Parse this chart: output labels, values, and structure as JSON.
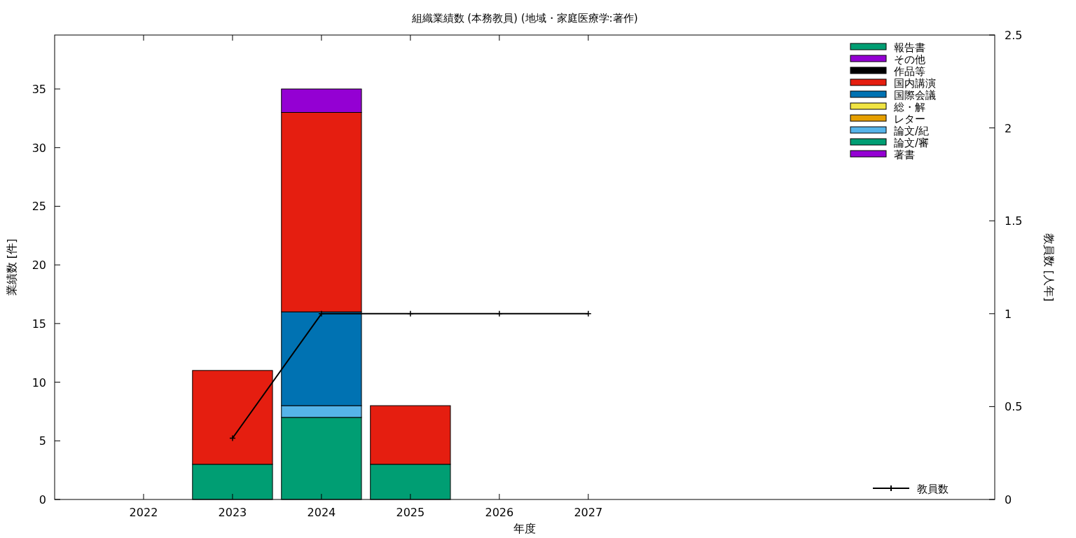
{
  "chart_data": {
    "type": "bar",
    "stacked": true,
    "title": "組織業績数 (本務教員) (地域・家庭医療学:著作)",
    "xlabel": "年度",
    "ylabel": "業績数 [件]",
    "y2label": "教員数 [人年]",
    "x": [
      2022,
      2023,
      2024,
      2025,
      2026,
      2027
    ],
    "xlim": [
      2021,
      2031.57
    ],
    "xticks": [
      2022,
      2023,
      2024,
      2025,
      2026,
      2027
    ],
    "ylim": [
      0,
      39.6
    ],
    "yticks": [
      0,
      5,
      10,
      15,
      20,
      25,
      30,
      35
    ],
    "y2lim": [
      0,
      2.5
    ],
    "y2ticks": [
      0,
      0.5,
      1,
      1.5,
      2,
      2.5
    ],
    "legend": "right",
    "grid": false,
    "series": [
      {
        "name": "著書",
        "color": "#9400d3",
        "values": [
          0,
          0,
          0,
          0,
          0,
          0
        ]
      },
      {
        "name": "論文/審",
        "color": "#009e73",
        "values": [
          0,
          3,
          7,
          3,
          0,
          0
        ]
      },
      {
        "name": "論文/紀",
        "color": "#56b4e9",
        "values": [
          0,
          0,
          1,
          0,
          0,
          0
        ]
      },
      {
        "name": "レター",
        "color": "#e69f00",
        "values": [
          0,
          0,
          0,
          0,
          0,
          0
        ]
      },
      {
        "name": "総・解",
        "color": "#f0e442",
        "values": [
          0,
          0,
          0,
          0,
          0,
          0
        ]
      },
      {
        "name": "国際会議",
        "color": "#0072b2",
        "values": [
          0,
          0,
          8,
          0,
          0,
          0
        ]
      },
      {
        "name": "国内講演",
        "color": "#e51e10",
        "values": [
          0,
          8,
          17,
          5,
          0,
          0
        ]
      },
      {
        "name": "作品等",
        "color": "#000000",
        "values": [
          0,
          0,
          0,
          0,
          0,
          0
        ]
      },
      {
        "name": "その他",
        "color": "#9400d3",
        "values": [
          0,
          0,
          2,
          0,
          0,
          0
        ]
      },
      {
        "name": "報告書",
        "color": "#009e73",
        "values": [
          0,
          0,
          0,
          0,
          0,
          0
        ]
      },
      {
        "name": "教員数",
        "type": "line",
        "axis": "y2",
        "color": "#000000",
        "marker": "cross",
        "x": [
          2023,
          2024,
          2025,
          2026,
          2027
        ],
        "values": [
          0.33,
          1,
          1,
          1,
          1
        ]
      }
    ]
  }
}
